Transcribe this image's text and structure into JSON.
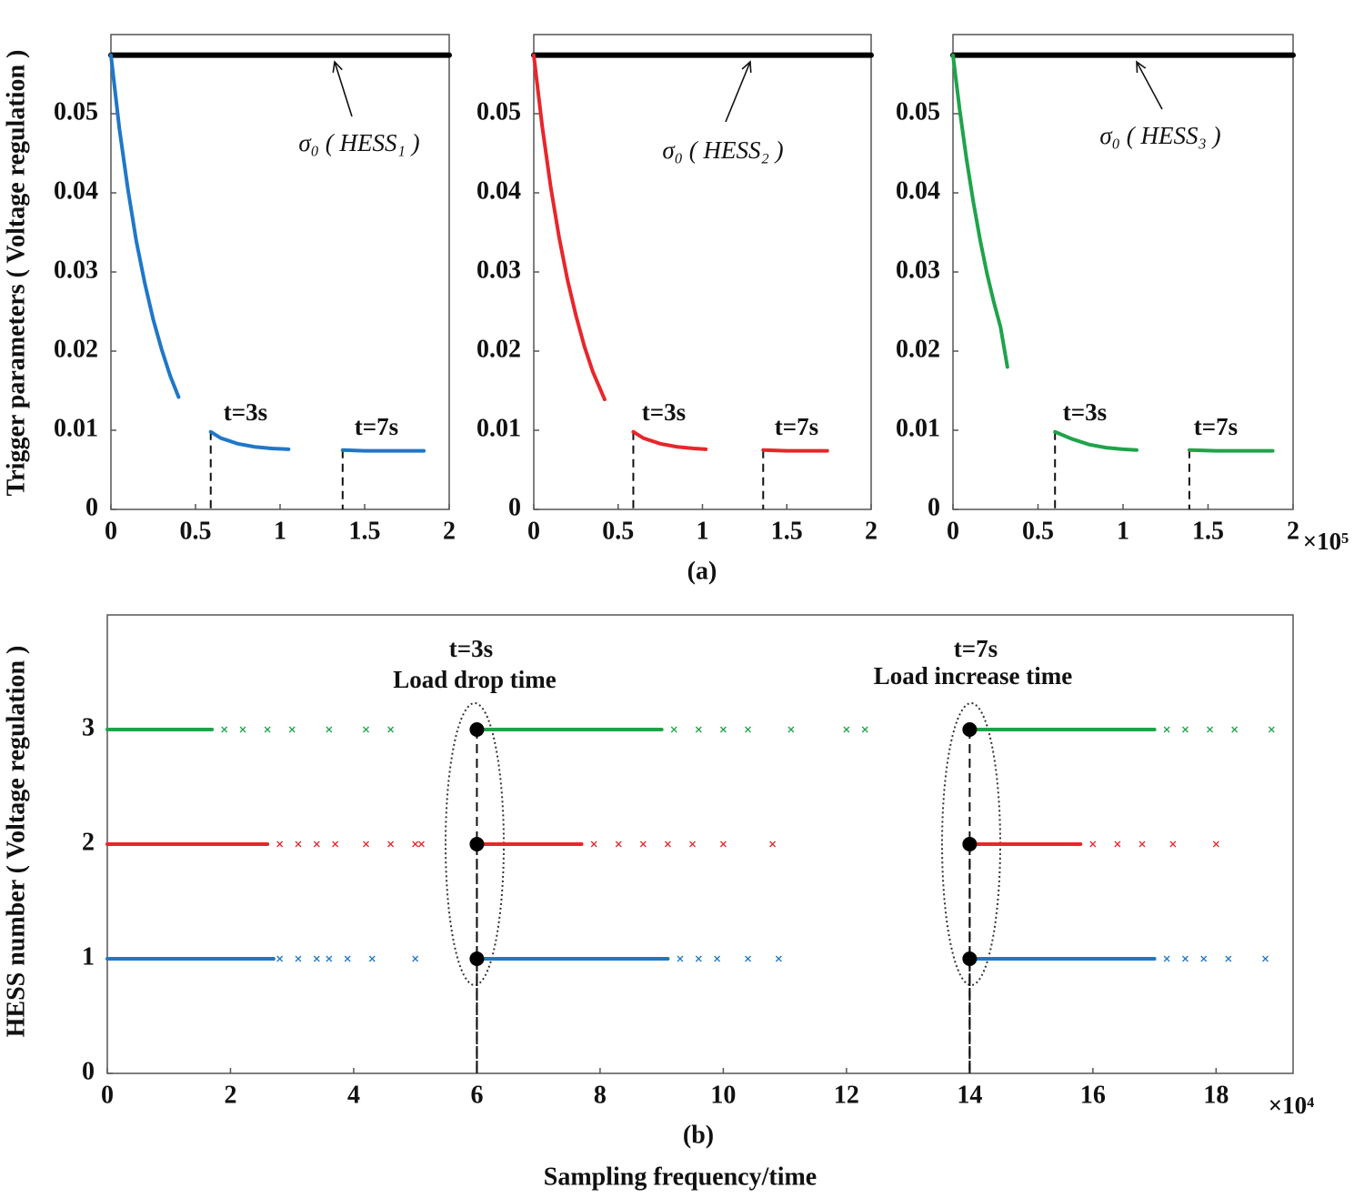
{
  "chart_data": [
    {
      "type": "scatter",
      "ylabel": "Trigger parameters ( Voltage regulation )",
      "xlim": [
        0,
        2
      ],
      "ylim": [
        0,
        0.06
      ],
      "xticks": [
        0,
        0.5,
        1,
        1.5,
        2
      ],
      "yticks": [
        0,
        0.01,
        0.02,
        0.03,
        0.04,
        0.05
      ],
      "series": [
        {
          "color": "#000000",
          "marker": "line",
          "x": [
            0,
            2
          ],
          "values": [
            0.0574,
            0.0574
          ]
        },
        {
          "color": "#1f77c8",
          "marker": "curve",
          "x": [
            0,
            0.05,
            0.1,
            0.15,
            0.2,
            0.25,
            0.3,
            0.35,
            0.4,
            null,
            0.59,
            0.65,
            0.75,
            0.85,
            0.95,
            1.05,
            null,
            1.37,
            1.5,
            1.65,
            1.85
          ],
          "values": [
            0.0574,
            0.0481,
            0.0405,
            0.0339,
            0.0286,
            0.024,
            0.0202,
            0.0169,
            0.0142,
            null,
            0.0098,
            0.009,
            0.0083,
            0.0079,
            0.0077,
            0.0076,
            null,
            0.0075,
            0.0074,
            0.0074,
            0.0074
          ]
        }
      ],
      "annotations": [
        "σ₀ ( HESS₁ )",
        "t=3s",
        "t=7s"
      ]
    },
    {
      "type": "scatter",
      "caption": "(a)",
      "xlim": [
        0,
        2
      ],
      "ylim": [
        0,
        0.06
      ],
      "xticks": [
        0,
        0.5,
        1,
        1.5,
        2
      ],
      "yticks": [
        0,
        0.01,
        0.02,
        0.03,
        0.04,
        0.05
      ],
      "series": [
        {
          "color": "#000000",
          "marker": "line",
          "x": [
            0,
            2
          ],
          "values": [
            0.0574,
            0.0574
          ]
        },
        {
          "color": "#e8262b",
          "marker": "curve",
          "x": [
            0,
            0.05,
            0.1,
            0.15,
            0.2,
            0.25,
            0.3,
            0.35,
            0.42,
            null,
            0.59,
            0.65,
            0.75,
            0.85,
            0.95,
            1.02,
            null,
            1.36,
            1.5,
            1.6,
            1.74
          ],
          "values": [
            0.0574,
            0.0484,
            0.0408,
            0.0344,
            0.029,
            0.0245,
            0.0206,
            0.0174,
            0.0139,
            null,
            0.0098,
            0.009,
            0.0083,
            0.0079,
            0.0077,
            0.0076,
            null,
            0.0075,
            0.0074,
            0.0074,
            0.0074
          ]
        }
      ],
      "annotations": [
        "σ₀ ( HESS₂ )",
        "t=3s",
        "t=7s"
      ]
    },
    {
      "type": "scatter",
      "x_exponent": "×10⁵",
      "xlim": [
        0,
        2
      ],
      "ylim": [
        0,
        0.06
      ],
      "xticks": [
        0,
        0.5,
        1,
        1.5,
        2
      ],
      "yticks": [
        0,
        0.01,
        0.02,
        0.03,
        0.04,
        0.05
      ],
      "series": [
        {
          "color": "#000000",
          "marker": "line",
          "x": [
            0,
            2
          ],
          "values": [
            0.0574,
            0.0574
          ]
        },
        {
          "color": "#1fa34a",
          "marker": "curve",
          "x": [
            0,
            0.04,
            0.08,
            0.12,
            0.16,
            0.2,
            0.24,
            0.28,
            0.32,
            null,
            0.6,
            0.7,
            0.8,
            0.9,
            1.0,
            1.08,
            null,
            1.39,
            1.55,
            1.7,
            1.88
          ],
          "values": [
            0.0574,
            0.0504,
            0.0442,
            0.0388,
            0.034,
            0.0298,
            0.0262,
            0.023,
            0.018,
            null,
            0.0098,
            0.0089,
            0.0082,
            0.0078,
            0.0076,
            0.0075,
            null,
            0.0075,
            0.0074,
            0.0074,
            0.0074
          ]
        }
      ],
      "annotations": [
        "σ₀ ( HESS₃ )",
        "t=3s",
        "t=7s"
      ]
    },
    {
      "type": "scatter",
      "ylabel": "HESS number ( Voltage regulation )",
      "xlabel": "Sampling frequency/time",
      "caption": "(b)",
      "x_exponent": "×10⁴",
      "xlim": [
        0,
        19.25
      ],
      "ylim": [
        0,
        4
      ],
      "xticks": [
        0,
        2,
        4,
        6,
        8,
        10,
        12,
        14,
        16,
        18
      ],
      "yticks": [
        0,
        1,
        2,
        3
      ],
      "series": [
        {
          "color": "#1f77c8",
          "marker": "line",
          "x": [
            0,
            2.7,
            null,
            6,
            9.1,
            null,
            14,
            17
          ],
          "values": [
            1,
            1,
            null,
            1,
            1,
            null,
            1,
            1
          ]
        },
        {
          "color": "#1f77c8",
          "marker": "x",
          "x": [
            2.8,
            3.1,
            3.4,
            3.6,
            3.9,
            4.3,
            5.0,
            9.3,
            9.6,
            9.9,
            10.4,
            10.9,
            17.2,
            17.5,
            17.8,
            18.2,
            18.8
          ],
          "values": [
            1,
            1,
            1,
            1,
            1,
            1,
            1,
            1,
            1,
            1,
            1,
            1,
            1,
            1,
            1,
            1,
            1
          ]
        },
        {
          "color": "#e8262b",
          "marker": "line",
          "x": [
            0,
            2.6,
            null,
            6,
            7.7,
            null,
            14,
            15.8
          ],
          "values": [
            2,
            2,
            null,
            2,
            2,
            null,
            2,
            2
          ]
        },
        {
          "color": "#e8262b",
          "marker": "x",
          "x": [
            2.8,
            3.1,
            3.4,
            3.7,
            4.2,
            4.6,
            5.0,
            5.1,
            7.9,
            8.3,
            8.7,
            9.1,
            9.5,
            10.0,
            10.8,
            16.0,
            16.4,
            16.8,
            17.3,
            18.0
          ],
          "values": [
            2,
            2,
            2,
            2,
            2,
            2,
            2,
            2,
            2,
            2,
            2,
            2,
            2,
            2,
            2,
            2,
            2,
            2,
            2,
            2
          ]
        },
        {
          "color": "#1fa34a",
          "marker": "line",
          "x": [
            0,
            1.7,
            null,
            6,
            9.0,
            null,
            14,
            17.0
          ],
          "values": [
            3,
            3,
            null,
            3,
            3,
            null,
            3,
            3
          ]
        },
        {
          "color": "#1fa34a",
          "marker": "x",
          "x": [
            1.9,
            2.2,
            2.6,
            3.0,
            3.6,
            4.2,
            4.6,
            9.2,
            9.6,
            10.0,
            10.4,
            11.1,
            12.0,
            12.3,
            17.2,
            17.5,
            17.9,
            18.3,
            18.9
          ],
          "values": [
            3,
            3,
            3,
            3,
            3,
            3,
            3,
            3,
            3,
            3,
            3,
            3,
            3,
            3,
            3,
            3,
            3,
            3,
            3
          ]
        },
        {
          "color": "#000000",
          "marker": "dot",
          "x": [
            6,
            6,
            6,
            14,
            14,
            14
          ],
          "values": [
            1,
            2,
            3,
            1,
            2,
            3
          ]
        }
      ],
      "annotations": [
        "t=3s",
        "Load drop time",
        "t=7s",
        "Load increase time"
      ]
    }
  ]
}
